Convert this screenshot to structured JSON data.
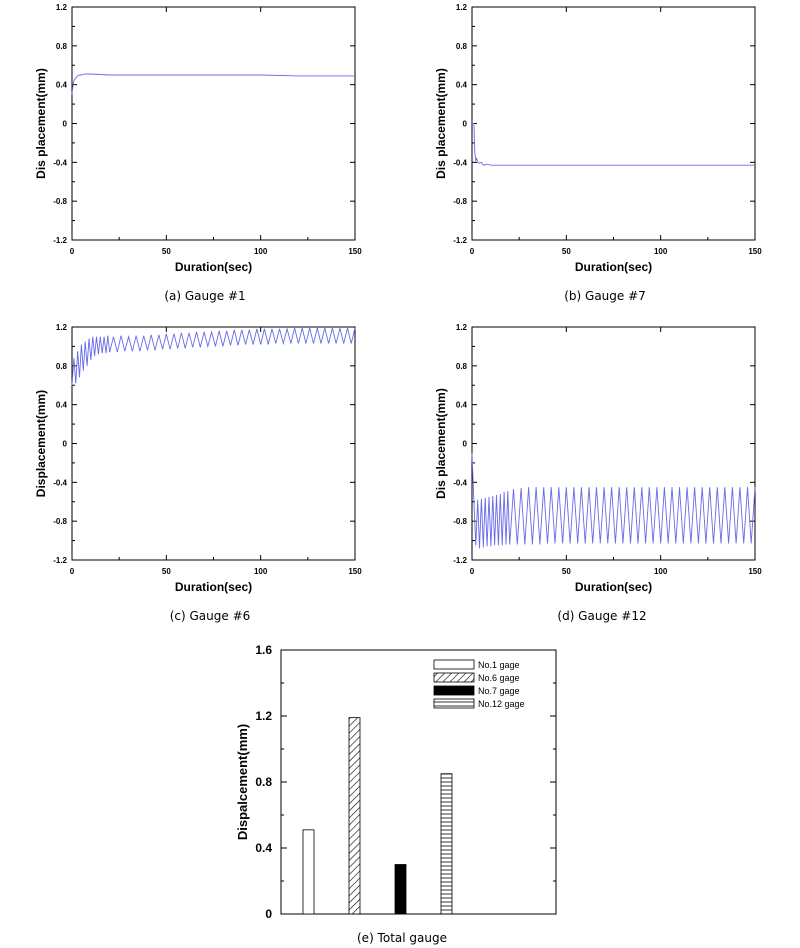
{
  "chart_data": [
    {
      "type": "line",
      "caption": "(a)  Gauge  #1",
      "xlabel": "Duration(sec)",
      "ylabel": "Dis placement(mm)",
      "xlim": [
        0,
        150
      ],
      "ylim": [
        -1.2,
        1.2
      ],
      "xticks": [
        "0",
        "50",
        "100",
        "150"
      ],
      "yticks": [
        "1.2",
        "0.8",
        "0.4",
        "0",
        "-0.4",
        "-0.8",
        "-1.2"
      ],
      "series": [
        {
          "color": "#6a6ae8",
          "x": [
            0,
            0.5,
            1,
            2,
            3,
            4,
            5,
            7,
            10,
            20,
            40,
            60,
            80,
            100,
            120,
            150
          ],
          "y": [
            0.3,
            0.38,
            0.44,
            0.47,
            0.49,
            0.5,
            0.5,
            0.51,
            0.51,
            0.5,
            0.5,
            0.5,
            0.5,
            0.5,
            0.49,
            0.49
          ]
        }
      ]
    },
    {
      "type": "line",
      "caption": "(b)  Gauge  #7",
      "xlabel": "Duration(sec)",
      "ylabel": "Dis placement(mm)",
      "xlim": [
        0,
        150
      ],
      "ylim": [
        -1.2,
        1.2
      ],
      "xticks": [
        "0",
        "50",
        "100",
        "150"
      ],
      "yticks": [
        "1.2",
        "0.8",
        "0.4",
        "0",
        "-0.4",
        "-0.8",
        "-1.2"
      ],
      "series": [
        {
          "color": "#6a6ae8",
          "x": [
            0,
            1,
            1.5,
            2,
            2.5,
            3,
            4,
            5,
            6,
            8,
            10,
            20,
            50,
            100,
            150
          ],
          "y": [
            0,
            0,
            -0.3,
            -0.38,
            -0.36,
            -0.4,
            -0.41,
            -0.4,
            -0.43,
            -0.42,
            -0.43,
            -0.43,
            -0.43,
            -0.43,
            -0.43
          ]
        }
      ]
    },
    {
      "type": "line",
      "caption": "(c)  Gauge  #6",
      "xlabel": "Duration(sec)",
      "ylabel": "Displacement(mm)",
      "xlim": [
        0,
        150
      ],
      "ylim": [
        -1.2,
        1.2
      ],
      "xticks": [
        "0",
        "50",
        "100",
        "150"
      ],
      "yticks": [
        "1.2",
        "0.8",
        "0.4",
        "0",
        "-0.4",
        "-0.8",
        "-1.2"
      ],
      "series": [
        {
          "color": "#6a6ae8",
          "x": [
            0,
            1,
            2,
            3,
            4,
            5,
            6,
            7,
            8,
            9,
            10,
            11,
            12,
            13,
            14,
            15,
            16,
            17,
            18,
            19,
            20,
            22,
            24,
            26,
            28,
            30,
            32,
            34,
            36,
            38,
            40,
            42,
            44,
            46,
            48,
            50,
            52,
            54,
            56,
            58,
            60,
            62,
            64,
            66,
            68,
            70,
            72,
            74,
            76,
            78,
            80,
            82,
            84,
            86,
            88,
            90,
            92,
            94,
            96,
            98,
            100,
            102,
            104,
            106,
            108,
            110,
            112,
            114,
            116,
            118,
            120,
            122,
            124,
            126,
            128,
            130,
            132,
            134,
            136,
            138,
            140,
            142,
            144,
            146,
            148,
            150
          ],
          "y": [
            0.6,
            0.88,
            0.62,
            0.95,
            0.68,
            1.02,
            0.75,
            1.05,
            0.8,
            1.08,
            0.86,
            1.1,
            0.9,
            1.1,
            0.92,
            1.1,
            0.93,
            1.1,
            0.93,
            1.11,
            0.94,
            1.1,
            0.94,
            1.11,
            0.95,
            1.1,
            0.95,
            1.11,
            0.95,
            1.11,
            0.96,
            1.12,
            0.96,
            1.12,
            0.97,
            1.13,
            0.97,
            1.13,
            0.98,
            1.14,
            0.98,
            1.14,
            0.99,
            1.15,
            0.99,
            1.15,
            1.0,
            1.15,
            1.0,
            1.16,
            1.0,
            1.16,
            1.01,
            1.17,
            1.01,
            1.17,
            1.02,
            1.17,
            1.02,
            1.18,
            1.02,
            1.18,
            1.02,
            1.18,
            1.03,
            1.18,
            1.03,
            1.18,
            1.03,
            1.19,
            1.03,
            1.19,
            1.03,
            1.19,
            1.03,
            1.19,
            1.03,
            1.19,
            1.03,
            1.19,
            1.03,
            1.19,
            1.03,
            1.19,
            1.03,
            1.19
          ]
        }
      ]
    },
    {
      "type": "line",
      "caption": "(d)  Gauge  #12",
      "xlabel": "Duration(sec)",
      "ylabel": "Dis placement(mm)",
      "xlim": [
        0,
        150
      ],
      "ylim": [
        -1.2,
        1.2
      ],
      "xticks": [
        "0",
        "50",
        "100",
        "150"
      ],
      "yticks": [
        "1.2",
        "0.8",
        "0.4",
        "0",
        "-0.4",
        "-0.8",
        "-1.2"
      ],
      "series": [
        {
          "color": "#6a6ae8",
          "x": [
            0,
            1,
            2,
            3,
            4,
            5,
            6,
            7,
            8,
            9,
            10,
            11,
            12,
            13,
            14,
            15,
            16,
            17,
            18,
            19,
            20,
            22,
            24,
            26,
            28,
            30,
            32,
            34,
            36,
            38,
            40,
            42,
            44,
            46,
            48,
            50,
            52,
            54,
            56,
            58,
            60,
            62,
            64,
            66,
            68,
            70,
            72,
            74,
            76,
            78,
            80,
            82,
            84,
            86,
            88,
            90,
            92,
            94,
            96,
            98,
            100,
            102,
            104,
            106,
            108,
            110,
            112,
            114,
            116,
            118,
            120,
            122,
            124,
            126,
            128,
            130,
            132,
            134,
            136,
            138,
            140,
            142,
            144,
            146,
            148,
            150
          ],
          "y": [
            -0.1,
            -0.6,
            -1.05,
            -0.58,
            -1.08,
            -0.57,
            -1.07,
            -0.56,
            -1.06,
            -0.55,
            -1.06,
            -0.54,
            -1.05,
            -0.53,
            -1.05,
            -0.52,
            -1.05,
            -0.5,
            -1.04,
            -0.49,
            -1.04,
            -0.47,
            -1.04,
            -0.46,
            -1.04,
            -0.45,
            -1.04,
            -0.45,
            -1.04,
            -0.45,
            -1.03,
            -0.45,
            -1.03,
            -0.45,
            -1.03,
            -0.45,
            -1.03,
            -0.45,
            -1.03,
            -0.45,
            -1.03,
            -0.45,
            -1.03,
            -0.45,
            -1.03,
            -0.45,
            -1.03,
            -0.45,
            -1.03,
            -0.45,
            -1.03,
            -0.45,
            -1.03,
            -0.45,
            -1.03,
            -0.45,
            -1.03,
            -0.45,
            -1.03,
            -0.45,
            -1.03,
            -0.45,
            -1.03,
            -0.45,
            -1.03,
            -0.45,
            -1.03,
            -0.45,
            -1.03,
            -0.45,
            -1.03,
            -0.45,
            -1.03,
            -0.45,
            -1.03,
            -0.45,
            -1.03,
            -0.45,
            -1.03,
            -0.45,
            -1.03,
            -0.45,
            -1.03,
            -0.45,
            -1.03,
            -0.45
          ]
        }
      ]
    },
    {
      "type": "bar",
      "caption": "(e)  Total  gauge",
      "ylabel": "Dispalcement(mm)",
      "ylim": [
        0,
        1.6
      ],
      "yticks": [
        "1.6",
        "1.2",
        "0.8",
        "0.4",
        "0"
      ],
      "legend_position": "top-right",
      "bars": [
        {
          "name": "No.1 gage",
          "value": 0.51,
          "fill": "none"
        },
        {
          "name": "No.6 gage",
          "value": 1.19,
          "fill": "diagonal"
        },
        {
          "name": "No.7 gage",
          "value": 0.3,
          "fill": "solid"
        },
        {
          "name": "No.12 gage",
          "value": 0.85,
          "fill": "horizontal"
        }
      ]
    }
  ]
}
